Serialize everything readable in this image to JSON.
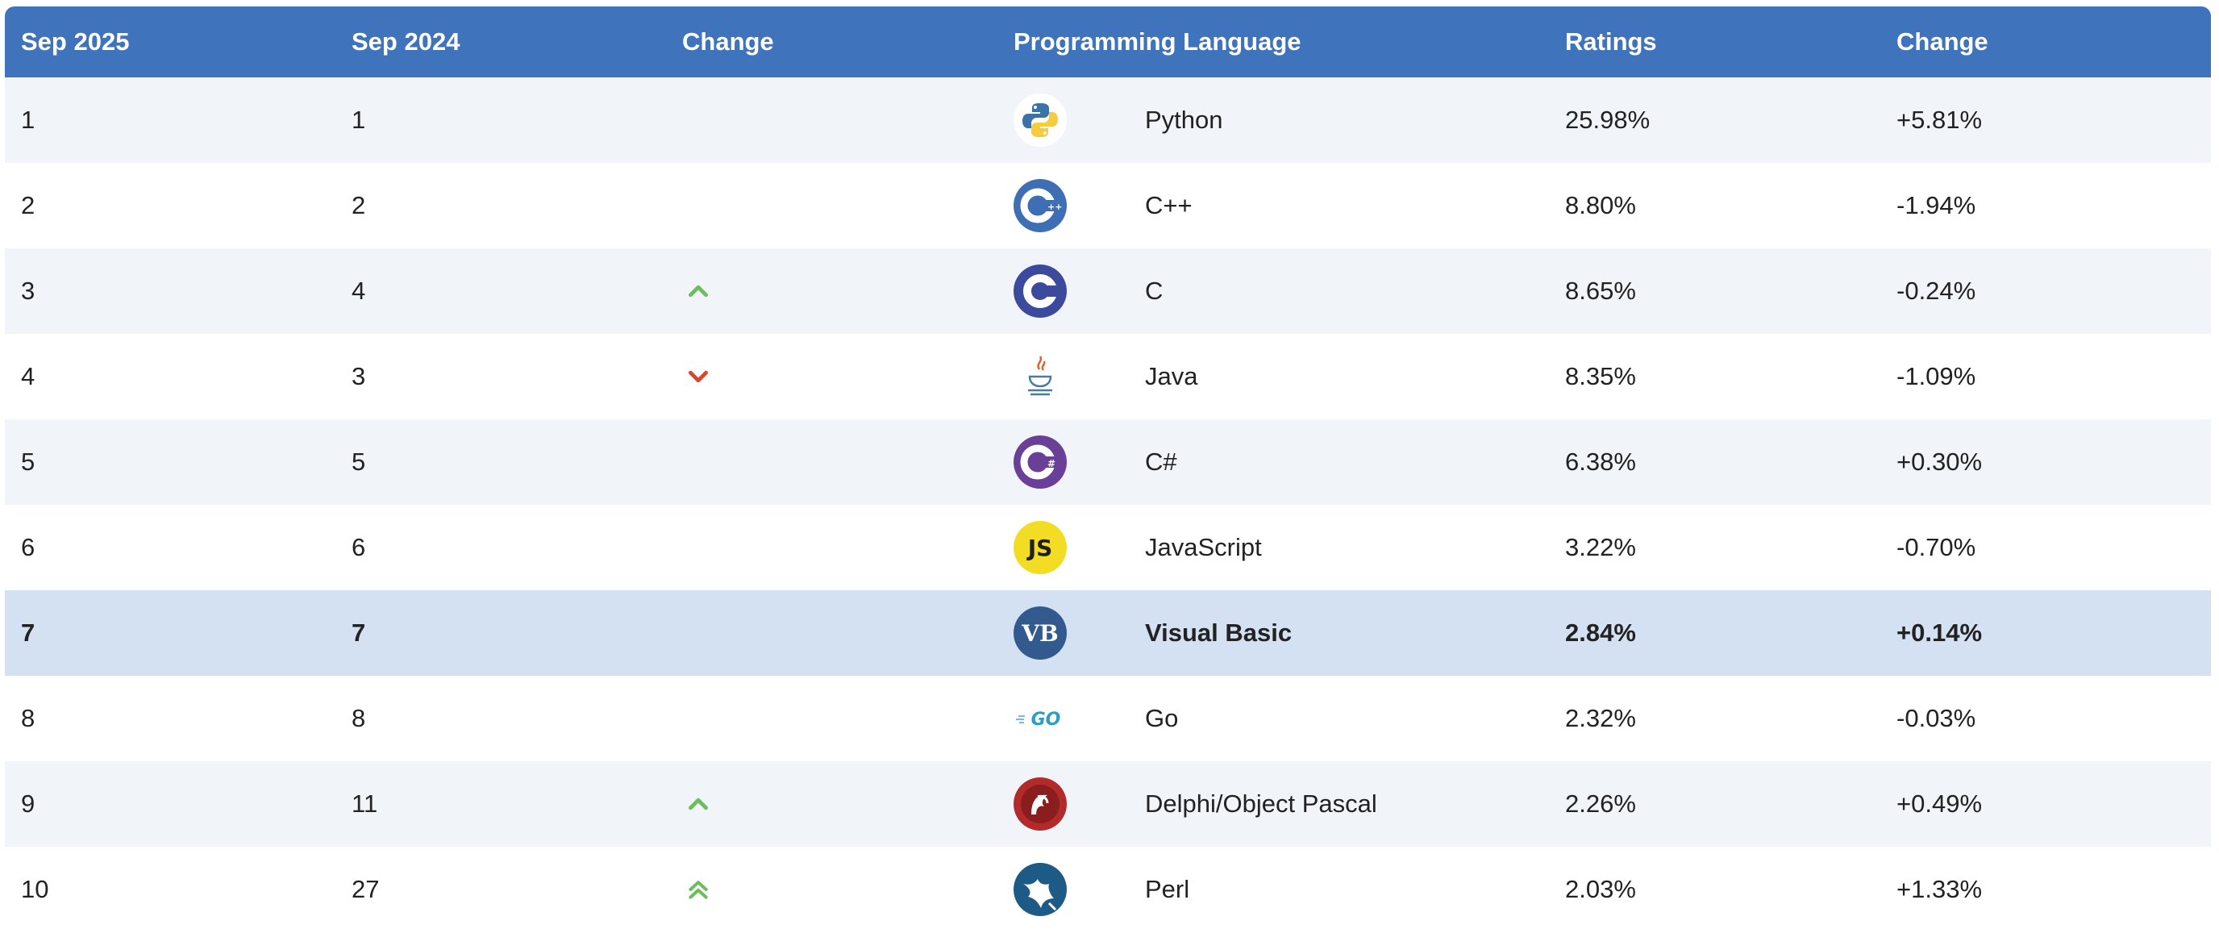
{
  "header": {
    "col1": "Sep 2025",
    "col2": "Sep 2024",
    "col3": "Change",
    "col4": "Programming Language",
    "col5": "Ratings",
    "col6": "Change"
  },
  "rows": [
    {
      "rank": "1",
      "prev": "1",
      "trend": "none",
      "language": "Python",
      "rating": "25.98%",
      "change": "+5.81%",
      "icon": "python-logo-icon"
    },
    {
      "rank": "2",
      "prev": "2",
      "trend": "none",
      "language": "C++",
      "rating": "8.80%",
      "change": "-1.94%",
      "icon": "cpp-logo-icon"
    },
    {
      "rank": "3",
      "prev": "4",
      "trend": "up",
      "language": "C",
      "rating": "8.65%",
      "change": "-0.24%",
      "icon": "c-logo-icon"
    },
    {
      "rank": "4",
      "prev": "3",
      "trend": "down",
      "language": "Java",
      "rating": "8.35%",
      "change": "-1.09%",
      "icon": "java-logo-icon"
    },
    {
      "rank": "5",
      "prev": "5",
      "trend": "none",
      "language": "C#",
      "rating": "6.38%",
      "change": "+0.30%",
      "icon": "csharp-logo-icon"
    },
    {
      "rank": "6",
      "prev": "6",
      "trend": "none",
      "language": "JavaScript",
      "rating": "3.22%",
      "change": "-0.70%",
      "icon": "javascript-logo-icon"
    },
    {
      "rank": "7",
      "prev": "7",
      "trend": "none",
      "language": "Visual Basic",
      "rating": "2.84%",
      "change": "+0.14%",
      "icon": "visual-basic-logo-icon",
      "highlight": true
    },
    {
      "rank": "8",
      "prev": "8",
      "trend": "none",
      "language": "Go",
      "rating": "2.32%",
      "change": "-0.03%",
      "icon": "go-logo-icon"
    },
    {
      "rank": "9",
      "prev": "11",
      "trend": "up",
      "language": "Delphi/Object Pascal",
      "rating": "2.26%",
      "change": "+0.49%",
      "icon": "delphi-logo-icon"
    },
    {
      "rank": "10",
      "prev": "27",
      "trend": "up-double",
      "language": "Perl",
      "rating": "2.03%",
      "change": "+1.33%",
      "icon": "perl-logo-icon"
    }
  ],
  "colors": {
    "header_bg": "#3f73bb",
    "row_odd": "#f1f4f9",
    "row_even": "#ffffff",
    "row_highlight": "#d3e1f3",
    "trend_up": "#6abf5a",
    "trend_down": "#d9452f"
  },
  "logo_text": {
    "javascript": "JS",
    "visual_basic": "VB",
    "go": "GO"
  }
}
